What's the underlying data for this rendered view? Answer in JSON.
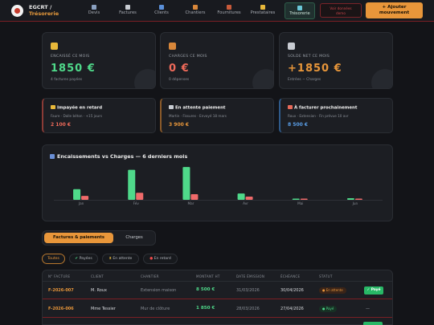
{
  "app": {
    "company": "EGCRT /",
    "section": "Trésorerie"
  },
  "nav": [
    {
      "label": "Devis",
      "icon": "document-icon",
      "color": "#8aa0c0"
    },
    {
      "label": "Factures",
      "icon": "invoice-icon",
      "color": "#c8ccd2"
    },
    {
      "label": "Clients",
      "icon": "users-icon",
      "color": "#5a8fd8"
    },
    {
      "label": "Chantiers",
      "icon": "construction-icon",
      "color": "#d8873a"
    },
    {
      "label": "Fournitures",
      "icon": "box-icon",
      "color": "#c85a3a"
    },
    {
      "label": "Prestataires",
      "icon": "worker-icon",
      "color": "#e8b83a"
    },
    {
      "label": "Trésorerie",
      "icon": "cash-icon",
      "color": "#6ac8d8"
    }
  ],
  "header": {
    "outline_button_line1": "Voir données",
    "outline_button_line2": "demo",
    "primary_button_line1": "+ Ajouter",
    "primary_button_line2": "mouvement"
  },
  "kpis": [
    {
      "label": "ENCAISSÉ CE MOIS",
      "value": "1850 €",
      "sub": "4 factures payées",
      "color": "#4fd98a",
      "icon": "money-bag-icon",
      "icon_color": "#e8b83a"
    },
    {
      "label": "CHARGES CE MOIS",
      "value": "0 €",
      "sub": "0 dépenses",
      "color": "#ef6a5a",
      "icon": "outbox-icon",
      "icon_color": "#d8873a"
    },
    {
      "label": "SOLDE NET CE MOIS",
      "value": "+1850 €",
      "sub": "Entrées − Charges",
      "color": "#e8963a",
      "icon": "balance-scale-icon",
      "icon_color": "#c8ccd2"
    }
  ],
  "alerts": [
    {
      "title": "Impayée en retard",
      "desc": "Faure · Dalle béton · +15 jours",
      "amount": "2 100 €",
      "color": "#ef6a5a",
      "border": "#8a3b36",
      "icon": "warning-icon",
      "icon_color": "#e8b83a"
    },
    {
      "title": "En attente paiement",
      "desc": "Martin · Fissures · Envoyé 18 mars",
      "amount": "3 900 €",
      "color": "#e8963a",
      "border": "#8a5a2a",
      "icon": "card-icon",
      "icon_color": "#c8ccd2"
    },
    {
      "title": "À facturer prochainement",
      "desc": "Roux · Extension · Fin prévue 10 avr",
      "amount": "8 500 €",
      "color": "#5a9fe8",
      "border": "#2f5a8a",
      "icon": "calendar-icon",
      "icon_color": "#e86a5a"
    }
  ],
  "chart": {
    "title": "Encaissements vs Charges — 6 derniers mois"
  },
  "chart_data": {
    "type": "bar",
    "title": "Encaissements vs Charges — 6 derniers mois",
    "categories": [
      "Jan",
      "Fév",
      "Mar",
      "Avr",
      "Mai",
      "Jun"
    ],
    "series": [
      {
        "values": [
          3000,
          8500,
          9300,
          1800,
          350,
          450
        ],
        "color": "#4fd98a"
      },
      {
        "values": [
          1100,
          2000,
          1600,
          900,
          300,
          350
        ],
        "color": "#ef6a6a"
      }
    ],
    "ylim": [
      0,
      10000
    ],
    "grid": false,
    "legend": "none"
  },
  "tabs": {
    "active": "Factures & paiements",
    "inactive": "Charges",
    "active_icon": "invoice-icon",
    "inactive_icon": "outbox-icon"
  },
  "filters": [
    {
      "label": "Toutes",
      "active": true,
      "icon": ""
    },
    {
      "label": "Payées",
      "active": false,
      "icon": "check-icon",
      "icon_color": "#4fd98a"
    },
    {
      "label": "En attente",
      "active": false,
      "icon": "hourglass-icon",
      "icon_color": "#e8b83a"
    },
    {
      "label": "En retard",
      "active": false,
      "icon": "red-dot-icon",
      "icon_color": "#ef4a4a"
    }
  ],
  "table": {
    "columns": [
      "N° FACTURE",
      "CLIENT",
      "CHANTIER",
      "MONTANT HT",
      "DATE ÉMISSION",
      "ÉCHÉANCE",
      "STATUT"
    ],
    "rows": [
      {
        "num": "F-2026-007",
        "client": "M. Roux",
        "chantier": "Extension maison",
        "montant": "8 500 €",
        "date": "31/03/2026",
        "echeance": "30/04/2026",
        "statut": "En attente",
        "statut_type": "wait",
        "action": "✓ Payé"
      },
      {
        "num": "F-2026-006",
        "client": "Mme Tessier",
        "chantier": "Mur de clôture",
        "montant": "1 850 €",
        "date": "28/03/2026",
        "echeance": "27/04/2026",
        "statut": "Payé",
        "statut_type": "paid",
        "action": "—"
      }
    ]
  }
}
